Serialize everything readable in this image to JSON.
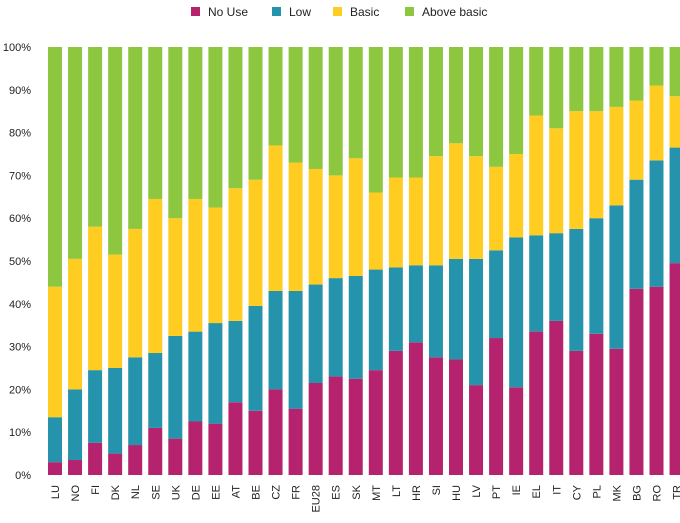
{
  "chart_data": {
    "type": "bar",
    "stacked": true,
    "percent_axis": true,
    "ylim": [
      0,
      100
    ],
    "y_ticks": [
      "0%",
      "10%",
      "20%",
      "30%",
      "40%",
      "50%",
      "60%",
      "70%",
      "80%",
      "90%",
      "100%"
    ],
    "grid": false,
    "legend_position": "top",
    "categories": [
      "LU",
      "NO",
      "FI",
      "DK",
      "NL",
      "SE",
      "UK",
      "DE",
      "EE",
      "AT",
      "BE",
      "CZ",
      "FR",
      "EU28",
      "ES",
      "SK",
      "MT",
      "LT",
      "HR",
      "SI",
      "HU",
      "LV",
      "PT",
      "IE",
      "EL",
      "IT",
      "CY",
      "PL",
      "MK",
      "BG",
      "RO",
      "TR"
    ],
    "series": [
      {
        "name": "No Use",
        "color": "#b5226e",
        "values": [
          3,
          3.5,
          7.5,
          5,
          7,
          11,
          8.5,
          12.5,
          12,
          17,
          15,
          20,
          15.5,
          21.5,
          23,
          22.5,
          24.5,
          29,
          31,
          27.5,
          27,
          21,
          32,
          20.5,
          33.5,
          36,
          29,
          33,
          29.5,
          43.5,
          44,
          49.5
        ]
      },
      {
        "name": "Low",
        "color": "#2593ab",
        "values": [
          10.5,
          16.5,
          17,
          20,
          20.5,
          17.5,
          24,
          21,
          23.5,
          19,
          24.5,
          23,
          27.5,
          23,
          23,
          24,
          23.5,
          19.5,
          18,
          21.5,
          23.5,
          29.5,
          20.5,
          35,
          22.5,
          20.5,
          28.5,
          27,
          33.5,
          25.5,
          29.5,
          27
        ]
      },
      {
        "name": "Basic",
        "color": "#ffcc21",
        "values": [
          30.5,
          30.5,
          33.5,
          26.5,
          30,
          36,
          27.5,
          31,
          27,
          31,
          29.5,
          34,
          30,
          27,
          24,
          27.5,
          18,
          21,
          20.5,
          25.5,
          27,
          24,
          19.5,
          19.5,
          28,
          24.5,
          27.5,
          25,
          23,
          18.5,
          17.5,
          12
        ]
      },
      {
        "name": "Above basic",
        "color": "#8dc63f",
        "values": [
          56,
          49.5,
          42,
          48.5,
          42.5,
          35.5,
          40,
          35.5,
          37.5,
          33,
          31,
          23,
          27,
          28.5,
          30,
          26,
          34,
          30.5,
          30.5,
          25.5,
          22.5,
          25.5,
          28,
          25,
          16,
          19,
          15,
          15,
          14,
          12.5,
          9,
          11.5
        ]
      }
    ]
  }
}
